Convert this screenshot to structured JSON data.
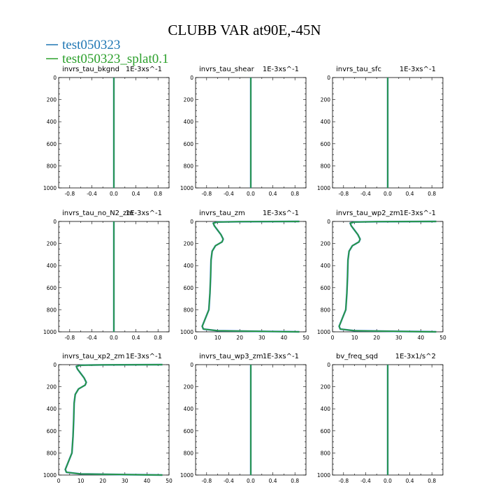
{
  "figure": {
    "title": "CLUBB VAR at90E,-45N",
    "legend": [
      {
        "label": "test050323",
        "color": "#1f77b4"
      },
      {
        "label": "test050323_splat0.1",
        "color": "#2ca02c"
      }
    ]
  },
  "chart_data": [
    {
      "type": "line",
      "title": "invrs_tau_bkgnd",
      "units": "1E-3xs^-1",
      "xlim": [
        -1,
        1
      ],
      "xticks": [
        -0.8,
        -0.4,
        0.0,
        0.4,
        0.8
      ],
      "xticklabels": [
        "-0.8",
        "-0.4",
        "0.0",
        "0.4",
        "0.8"
      ],
      "ylim": [
        1000,
        0
      ],
      "yticks": [
        0,
        200,
        400,
        600,
        800,
        1000
      ],
      "yticklabels": [
        "0",
        "200",
        "400",
        "600",
        "800",
        "1000"
      ],
      "series": [
        {
          "color": "#1f77b4",
          "points": [
            [
              0,
              0
            ],
            [
              0,
              1000
            ]
          ]
        },
        {
          "color": "#2ca02c",
          "points": [
            [
              0,
              0
            ],
            [
              0,
              1000
            ]
          ]
        }
      ]
    },
    {
      "type": "line",
      "title": "invrs_tau_shear",
      "units": "1E-3xs^-1",
      "xlim": [
        -1,
        1
      ],
      "xticks": [
        -0.8,
        -0.4,
        0.0,
        0.4,
        0.8
      ],
      "xticklabels": [
        "-0.8",
        "-0.4",
        "0.0",
        "0.4",
        "0.8"
      ],
      "ylim": [
        1000,
        0
      ],
      "yticks": [
        0,
        200,
        400,
        600,
        800,
        1000
      ],
      "yticklabels": [
        "0",
        "200",
        "400",
        "600",
        "800",
        "1000"
      ],
      "series": [
        {
          "color": "#1f77b4",
          "points": [
            [
              0,
              0
            ],
            [
              0,
              1000
            ]
          ]
        },
        {
          "color": "#2ca02c",
          "points": [
            [
              0,
              0
            ],
            [
              0,
              1000
            ]
          ]
        }
      ]
    },
    {
      "type": "line",
      "title": "invrs_tau_sfc",
      "units": "1E-3xs^-1",
      "xlim": [
        -1,
        1
      ],
      "xticks": [
        -0.8,
        -0.4,
        0.0,
        0.4,
        0.8
      ],
      "xticklabels": [
        "-0.8",
        "-0.4",
        "0.0",
        "0.4",
        "0.8"
      ],
      "ylim": [
        1000,
        0
      ],
      "yticks": [
        0,
        200,
        400,
        600,
        800,
        1000
      ],
      "yticklabels": [
        "0",
        "200",
        "400",
        "600",
        "800",
        "1000"
      ],
      "series": [
        {
          "color": "#1f77b4",
          "points": [
            [
              0,
              0
            ],
            [
              0,
              1000
            ]
          ]
        },
        {
          "color": "#2ca02c",
          "points": [
            [
              0,
              0
            ],
            [
              0,
              1000
            ]
          ]
        }
      ]
    },
    {
      "type": "line",
      "title": "invrs_tau_no_N2_zm",
      "units": "1E-3xs^-1",
      "xlim": [
        -1,
        1
      ],
      "xticks": [
        -0.8,
        -0.4,
        0.0,
        0.4,
        0.8
      ],
      "xticklabels": [
        "-0.8",
        "-0.4",
        "0.0",
        "0.4",
        "0.8"
      ],
      "ylim": [
        1000,
        0
      ],
      "yticks": [
        0,
        200,
        400,
        600,
        800,
        1000
      ],
      "yticklabels": [
        "0",
        "200",
        "400",
        "600",
        "800",
        "1000"
      ],
      "series": [
        {
          "color": "#1f77b4",
          "points": [
            [
              0,
              0
            ],
            [
              0,
              1000
            ]
          ]
        },
        {
          "color": "#2ca02c",
          "points": [
            [
              0,
              0
            ],
            [
              0,
              1000
            ]
          ]
        }
      ]
    },
    {
      "type": "line",
      "title": "invrs_tau_zm",
      "units": "1E-3xs^-1",
      "xlim": [
        0,
        50
      ],
      "xticks": [
        0,
        10,
        20,
        30,
        40,
        50
      ],
      "xticklabels": [
        "0",
        "10",
        "20",
        "30",
        "40",
        "50"
      ],
      "ylim": [
        1000,
        0
      ],
      "yticks": [
        0,
        200,
        400,
        600,
        800,
        1000
      ],
      "yticklabels": [
        "0",
        "200",
        "400",
        "600",
        "800",
        "1000"
      ],
      "series": [
        {
          "color": "#1f77b4",
          "points": [
            [
              47,
              0
            ],
            [
              20,
              2
            ],
            [
              10,
              5
            ],
            [
              8,
              15
            ],
            [
              8.5,
              40
            ],
            [
              10,
              80
            ],
            [
              11.5,
              120
            ],
            [
              12.5,
              160
            ],
            [
              12,
              185
            ],
            [
              9,
              220
            ],
            [
              7.5,
              270
            ],
            [
              7,
              350
            ],
            [
              6.8,
              500
            ],
            [
              6.5,
              650
            ],
            [
              6,
              800
            ],
            [
              4,
              900
            ],
            [
              3,
              950
            ],
            [
              3.5,
              975
            ],
            [
              10,
              990
            ],
            [
              30,
              996
            ],
            [
              47,
              1000
            ]
          ]
        },
        {
          "color": "#2ca02c",
          "points": [
            [
              47,
              0
            ],
            [
              20,
              2
            ],
            [
              10,
              5
            ],
            [
              8,
              15
            ],
            [
              8.5,
              40
            ],
            [
              10,
              80
            ],
            [
              11.5,
              120
            ],
            [
              12.5,
              160
            ],
            [
              12,
              185
            ],
            [
              9,
              220
            ],
            [
              7.5,
              270
            ],
            [
              7,
              350
            ],
            [
              6.8,
              500
            ],
            [
              6.5,
              650
            ],
            [
              6,
              800
            ],
            [
              4,
              900
            ],
            [
              3,
              950
            ],
            [
              3.5,
              975
            ],
            [
              10,
              990
            ],
            [
              30,
              996
            ],
            [
              47,
              1000
            ]
          ]
        }
      ]
    },
    {
      "type": "line",
      "title": "invrs_tau_wp2_zm",
      "units": "1E-3xs^-1",
      "xlim": [
        0,
        50
      ],
      "xticks": [
        0,
        10,
        20,
        30,
        40,
        50
      ],
      "xticklabels": [
        "0",
        "10",
        "20",
        "30",
        "40",
        "50"
      ],
      "ylim": [
        1000,
        0
      ],
      "yticks": [
        0,
        200,
        400,
        600,
        800,
        1000
      ],
      "yticklabels": [
        "0",
        "200",
        "400",
        "600",
        "800",
        "1000"
      ],
      "series": [
        {
          "color": "#1f77b4",
          "points": [
            [
              47,
              0
            ],
            [
              20,
              2
            ],
            [
              10,
              5
            ],
            [
              8,
              15
            ],
            [
              8.5,
              40
            ],
            [
              10,
              80
            ],
            [
              11.5,
              120
            ],
            [
              12.5,
              160
            ],
            [
              12,
              185
            ],
            [
              9,
              220
            ],
            [
              7.5,
              270
            ],
            [
              7,
              350
            ],
            [
              6.8,
              500
            ],
            [
              6.5,
              650
            ],
            [
              6,
              800
            ],
            [
              4,
              900
            ],
            [
              3,
              950
            ],
            [
              3.5,
              975
            ],
            [
              10,
              990
            ],
            [
              30,
              996
            ],
            [
              47,
              1000
            ]
          ]
        },
        {
          "color": "#2ca02c",
          "points": [
            [
              47,
              0
            ],
            [
              20,
              2
            ],
            [
              10,
              5
            ],
            [
              8,
              15
            ],
            [
              8.5,
              40
            ],
            [
              10,
              80
            ],
            [
              11.5,
              120
            ],
            [
              12.5,
              160
            ],
            [
              12,
              185
            ],
            [
              9,
              220
            ],
            [
              7.5,
              270
            ],
            [
              7,
              350
            ],
            [
              6.8,
              500
            ],
            [
              6.5,
              650
            ],
            [
              6,
              800
            ],
            [
              4,
              900
            ],
            [
              3,
              950
            ],
            [
              3.5,
              975
            ],
            [
              10,
              990
            ],
            [
              30,
              996
            ],
            [
              47,
              1000
            ]
          ]
        }
      ]
    },
    {
      "type": "line",
      "title": "invrs_tau_xp2_zm",
      "units": "1E-3xs^-1",
      "xlim": [
        0,
        50
      ],
      "xticks": [
        0,
        10,
        20,
        30,
        40,
        50
      ],
      "xticklabels": [
        "0",
        "10",
        "20",
        "30",
        "40",
        "50"
      ],
      "ylim": [
        1000,
        0
      ],
      "yticks": [
        0,
        200,
        400,
        600,
        800,
        1000
      ],
      "yticklabels": [
        "0",
        "200",
        "400",
        "600",
        "800",
        "1000"
      ],
      "series": [
        {
          "color": "#1f77b4",
          "points": [
            [
              47,
              0
            ],
            [
              20,
              2
            ],
            [
              10,
              5
            ],
            [
              8,
              15
            ],
            [
              8.5,
              40
            ],
            [
              10,
              80
            ],
            [
              11.5,
              120
            ],
            [
              12.5,
              160
            ],
            [
              12,
              185
            ],
            [
              9,
              220
            ],
            [
              7.5,
              270
            ],
            [
              7,
              350
            ],
            [
              6.8,
              500
            ],
            [
              6.5,
              650
            ],
            [
              6,
              800
            ],
            [
              4,
              900
            ],
            [
              3,
              950
            ],
            [
              3.5,
              975
            ],
            [
              10,
              990
            ],
            [
              30,
              996
            ],
            [
              47,
              1000
            ]
          ]
        },
        {
          "color": "#2ca02c",
          "points": [
            [
              47,
              0
            ],
            [
              20,
              2
            ],
            [
              10,
              5
            ],
            [
              8,
              15
            ],
            [
              8.5,
              40
            ],
            [
              10,
              80
            ],
            [
              11.5,
              120
            ],
            [
              12.5,
              160
            ],
            [
              12,
              185
            ],
            [
              9,
              220
            ],
            [
              7.5,
              270
            ],
            [
              7,
              350
            ],
            [
              6.8,
              500
            ],
            [
              6.5,
              650
            ],
            [
              6,
              800
            ],
            [
              4,
              900
            ],
            [
              3,
              950
            ],
            [
              3.5,
              975
            ],
            [
              10,
              990
            ],
            [
              30,
              996
            ],
            [
              47,
              1000
            ]
          ]
        }
      ]
    },
    {
      "type": "line",
      "title": "invrs_tau_wp3_zm",
      "units": "1E-3xs^-1",
      "xlim": [
        -1,
        1
      ],
      "xticks": [
        -0.8,
        -0.4,
        0.0,
        0.4,
        0.8
      ],
      "xticklabels": [
        "-0.8",
        "-0.4",
        "0.0",
        "0.4",
        "0.8"
      ],
      "ylim": [
        1000,
        0
      ],
      "yticks": [
        0,
        200,
        400,
        600,
        800,
        1000
      ],
      "yticklabels": [
        "0",
        "200",
        "400",
        "600",
        "800",
        "1000"
      ],
      "series": [
        {
          "color": "#1f77b4",
          "points": [
            [
              0,
              0
            ],
            [
              0,
              1000
            ]
          ]
        },
        {
          "color": "#2ca02c",
          "points": [
            [
              0,
              0
            ],
            [
              0,
              1000
            ]
          ]
        }
      ]
    },
    {
      "type": "line",
      "title": "bv_freq_sqd",
      "units": "1E-3x1/s^2",
      "xlim": [
        -1,
        1
      ],
      "xticks": [
        -0.8,
        -0.4,
        0.0,
        0.4,
        0.8
      ],
      "xticklabels": [
        "-0.8",
        "-0.4",
        "0.0",
        "0.4",
        "0.8"
      ],
      "ylim": [
        1000,
        0
      ],
      "yticks": [
        0,
        200,
        400,
        600,
        800,
        1000
      ],
      "yticklabels": [
        "0",
        "200",
        "400",
        "600",
        "800",
        "1000"
      ],
      "series": [
        {
          "color": "#1f77b4",
          "points": [
            [
              0,
              0
            ],
            [
              0,
              1000
            ]
          ]
        },
        {
          "color": "#2ca02c",
          "points": [
            [
              0,
              0
            ],
            [
              0,
              1000
            ]
          ]
        }
      ]
    }
  ]
}
